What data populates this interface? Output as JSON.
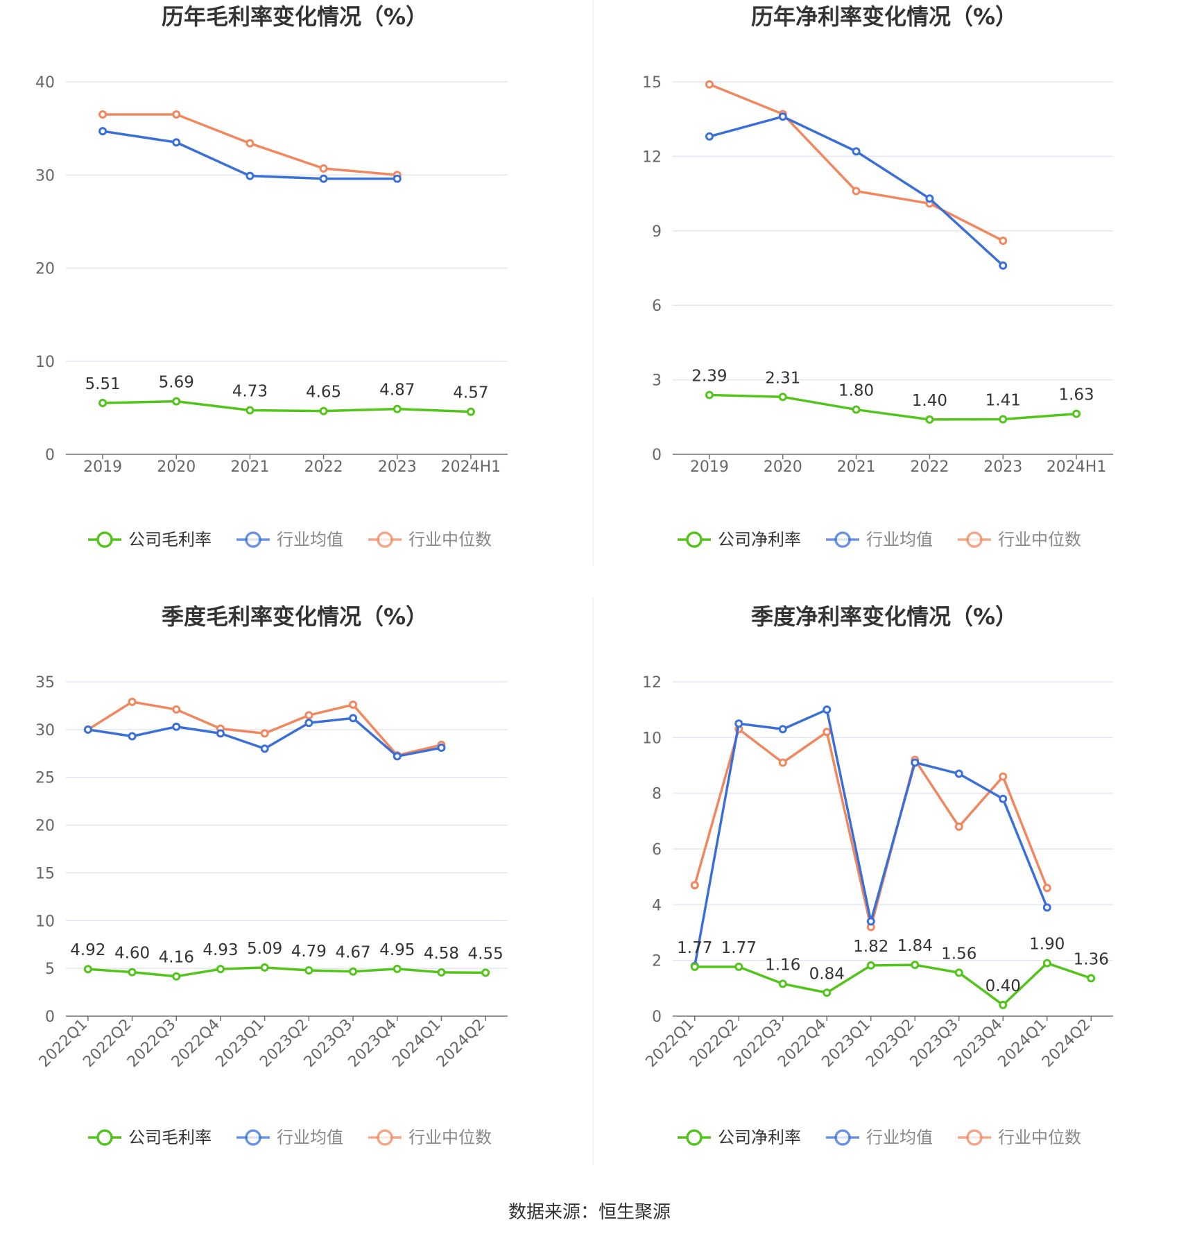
{
  "source": "数据来源：恒生聚源",
  "colors": {
    "company": "#52c41a",
    "avg": "#3a6fd8",
    "median": "#f0875f",
    "grid": "#e3e6f0",
    "axis": "#666666",
    "title": "#333333"
  },
  "legend_icon": "circle-line-marker-icon",
  "chart_data": [
    {
      "type": "line",
      "title": "历年毛利率变化情况（%）",
      "categories": [
        "2019",
        "2020",
        "2021",
        "2022",
        "2023",
        "2024H1"
      ],
      "yticks": [
        "0",
        "10",
        "20",
        "30",
        "40"
      ],
      "ylim": [
        0,
        40
      ],
      "series": [
        {
          "name": "公司毛利率",
          "key": "company",
          "values": [
            5.51,
            5.69,
            4.73,
            4.65,
            4.87,
            4.57
          ],
          "labels": [
            "5.51",
            "5.69",
            "4.73",
            "4.65",
            "4.87",
            "4.57"
          ]
        },
        {
          "name": "行业均值",
          "key": "avg",
          "values": [
            34.7,
            33.5,
            29.9,
            29.6,
            29.6,
            null
          ]
        },
        {
          "name": "行业中位数",
          "key": "median",
          "values": [
            36.5,
            36.5,
            33.4,
            30.7,
            30.0,
            null
          ]
        }
      ]
    },
    {
      "type": "line",
      "title": "历年净利率变化情况（%）",
      "categories": [
        "2019",
        "2020",
        "2021",
        "2022",
        "2023",
        "2024H1"
      ],
      "yticks": [
        "0",
        "3",
        "6",
        "9",
        "12",
        "15"
      ],
      "ylim": [
        0,
        15
      ],
      "series": [
        {
          "name": "公司净利率",
          "key": "company",
          "values": [
            2.39,
            2.31,
            1.8,
            1.4,
            1.41,
            1.63
          ],
          "labels": [
            "2.39",
            "2.31",
            "1.80",
            "1.40",
            "1.41",
            "1.63"
          ]
        },
        {
          "name": "行业均值",
          "key": "avg",
          "values": [
            12.8,
            13.6,
            12.2,
            10.3,
            7.6,
            null
          ]
        },
        {
          "name": "行业中位数",
          "key": "median",
          "values": [
            14.9,
            13.7,
            10.6,
            10.1,
            8.6,
            null
          ]
        }
      ]
    },
    {
      "type": "line",
      "title": "季度毛利率变化情况（%）",
      "categories": [
        "2022Q1",
        "2022Q2",
        "2022Q3",
        "2022Q4",
        "2023Q1",
        "2023Q2",
        "2023Q3",
        "2023Q4",
        "2024Q1",
        "2024Q2"
      ],
      "rotate_labels": true,
      "yticks": [
        "0",
        "5",
        "10",
        "15",
        "20",
        "25",
        "30",
        "35"
      ],
      "ylim": [
        0,
        35
      ],
      "series": [
        {
          "name": "公司毛利率",
          "key": "company",
          "values": [
            4.92,
            4.6,
            4.16,
            4.93,
            5.09,
            4.79,
            4.67,
            4.95,
            4.58,
            4.55
          ],
          "labels": [
            "4.92",
            "4.60",
            "4.16",
            "4.93",
            "5.09",
            "4.79",
            "4.67",
            "4.95",
            "4.58",
            "4.55"
          ]
        },
        {
          "name": "行业均值",
          "key": "avg",
          "values": [
            30.0,
            29.3,
            30.3,
            29.6,
            28.0,
            30.7,
            31.2,
            27.2,
            28.1,
            null
          ]
        },
        {
          "name": "行业中位数",
          "key": "median",
          "values": [
            30.0,
            32.9,
            32.1,
            30.1,
            29.6,
            31.5,
            32.6,
            27.3,
            28.4,
            null
          ]
        }
      ]
    },
    {
      "type": "line",
      "title": "季度净利率变化情况（%）",
      "categories": [
        "2022Q1",
        "2022Q2",
        "2022Q3",
        "2022Q4",
        "2023Q1",
        "2023Q2",
        "2023Q3",
        "2023Q4",
        "2024Q1",
        "2024Q2"
      ],
      "rotate_labels": true,
      "yticks": [
        "0",
        "2",
        "4",
        "6",
        "8",
        "10",
        "12"
      ],
      "ylim": [
        0,
        12
      ],
      "series": [
        {
          "name": "公司净利率",
          "key": "company",
          "values": [
            1.77,
            1.77,
            1.16,
            0.84,
            1.82,
            1.84,
            1.56,
            0.4,
            1.9,
            1.36
          ],
          "labels": [
            "1.77",
            "1.77",
            "1.16",
            "0.84",
            "1.82",
            "1.84",
            "1.56",
            "0.40",
            "1.90",
            "1.36"
          ]
        },
        {
          "name": "行业均值",
          "key": "avg",
          "values": [
            1.8,
            10.5,
            10.3,
            11.0,
            3.4,
            9.1,
            8.7,
            7.8,
            3.9,
            null
          ]
        },
        {
          "name": "行业中位数",
          "key": "median",
          "values": [
            4.7,
            10.3,
            9.1,
            10.2,
            3.2,
            9.2,
            6.8,
            8.6,
            4.6,
            null
          ]
        }
      ]
    }
  ]
}
